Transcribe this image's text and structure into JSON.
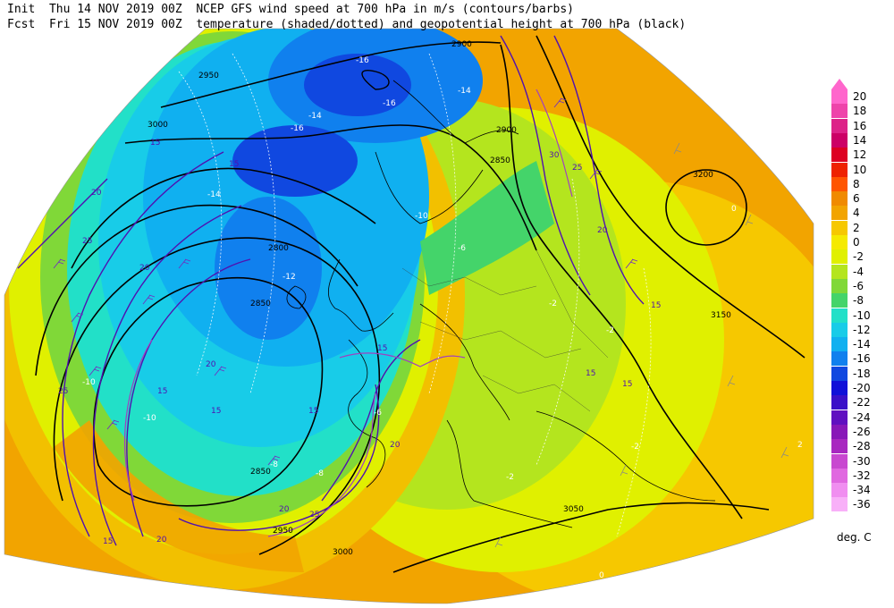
{
  "header": {
    "init_label": "Init",
    "init_time": "Thu 14 NOV 2019 00Z",
    "fcst_label": "Fcst",
    "fcst_time": "Fri 15 NOV 2019 00Z",
    "title_line1": "NCEP GFS wind speed at 700 hPa in m/s (contours/barbs)",
    "title_line2": "temperature (shaded/dotted) and geopotential height at 700 hPa (black)"
  },
  "colorbar": {
    "unit": "deg. C",
    "levels": [
      {
        "label": "20",
        "color": "#ff66cc"
      },
      {
        "label": "18",
        "color": "#ee44aa"
      },
      {
        "label": "16",
        "color": "#dd2288"
      },
      {
        "label": "14",
        "color": "#cc0066"
      },
      {
        "label": "12",
        "color": "#dd0022"
      },
      {
        "label": "10",
        "color": "#ee2200"
      },
      {
        "label": "8",
        "color": "#ff5500"
      },
      {
        "label": "6",
        "color": "#f08a00"
      },
      {
        "label": "4",
        "color": "#f2a400"
      },
      {
        "label": "2",
        "color": "#f6c800"
      },
      {
        "label": "0",
        "color": "#f5ea00"
      },
      {
        "label": "-2",
        "color": "#e0f000"
      },
      {
        "label": "-4",
        "color": "#b4e51e"
      },
      {
        "label": "-6",
        "color": "#80d838"
      },
      {
        "label": "-8",
        "color": "#44d46a"
      },
      {
        "label": "-10",
        "color": "#22e0c8"
      },
      {
        "label": "-12",
        "color": "#18cce8"
      },
      {
        "label": "-14",
        "color": "#10b0f0"
      },
      {
        "label": "-16",
        "color": "#1080ee"
      },
      {
        "label": "-18",
        "color": "#1048e0"
      },
      {
        "label": "-20",
        "color": "#1010d8"
      },
      {
        "label": "-22",
        "color": "#3a10c8"
      },
      {
        "label": "-24",
        "color": "#6010c0"
      },
      {
        "label": "-26",
        "color": "#8818b8"
      },
      {
        "label": "-28",
        "color": "#a828c0"
      },
      {
        "label": "-30",
        "color": "#c848d0"
      },
      {
        "label": "-32",
        "color": "#e068e0"
      },
      {
        "label": "-34",
        "color": "#f08ef0"
      },
      {
        "label": "-36",
        "color": "#f8b0f8"
      }
    ]
  },
  "map_labels": {
    "height_contours": [
      "2950",
      "3000",
      "2900",
      "2850",
      "2800",
      "2900",
      "3200",
      "3150",
      "3050",
      "2850",
      "3000",
      "2850",
      "2950"
    ],
    "wind_contours": [
      "15",
      "20",
      "25",
      "30",
      "15",
      "20",
      "25",
      "15",
      "20",
      "15",
      "15",
      "20",
      "25",
      "15",
      "20",
      "15",
      "15",
      "25",
      "15",
      "20",
      "20",
      "15"
    ],
    "temp_labels": [
      "-16",
      "-16",
      "-14",
      "-14",
      "-16",
      "-14",
      "-10",
      "-12",
      "-6",
      "-8",
      "-10",
      "-2",
      "-2",
      "-2",
      "-6",
      "-8",
      "-10",
      "0",
      "-2",
      "0",
      "2"
    ]
  }
}
